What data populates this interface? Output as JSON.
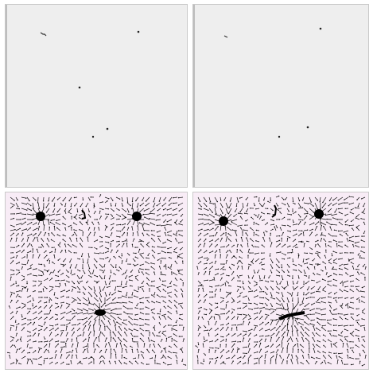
{
  "colors": {
    "sparse_background": "#eeeeee",
    "field_background": "#f8ecf6",
    "frame": "#bdbdbd",
    "ink": "#111111"
  },
  "panels": [
    {
      "name": "top-left-sparse-panel",
      "kind": "sparse"
    },
    {
      "name": "top-right-sparse-panel",
      "kind": "sparse"
    },
    {
      "name": "bottom-left-vector-field-panel",
      "kind": "field"
    },
    {
      "name": "bottom-right-vector-field-panel",
      "kind": "field"
    }
  ]
}
